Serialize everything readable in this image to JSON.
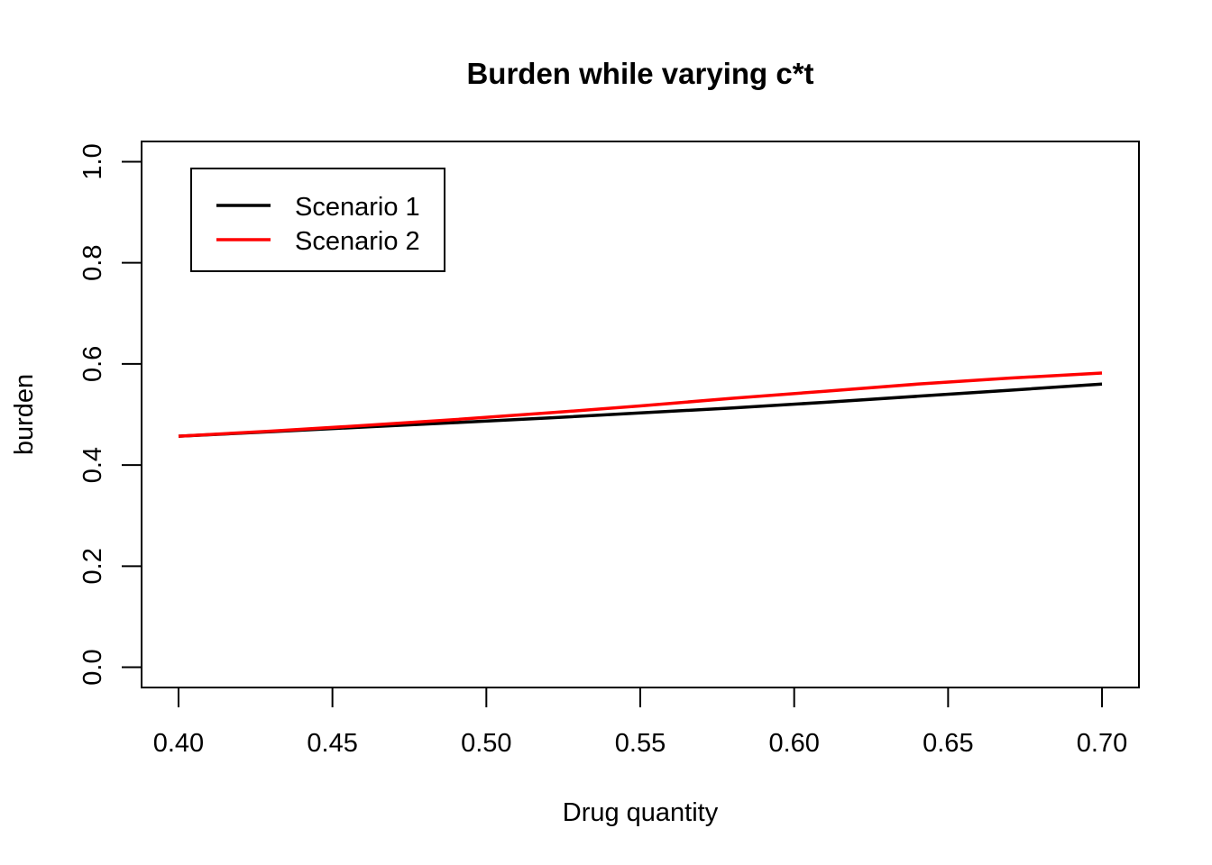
{
  "chart_data": {
    "type": "line",
    "title": "Burden while varying c*t",
    "xlabel": "Drug quantity",
    "ylabel": "burden",
    "xlim": [
      0.388,
      0.712
    ],
    "ylim": [
      -0.04,
      1.04
    ],
    "x_ticks": [
      "0.40",
      "0.45",
      "0.50",
      "0.55",
      "0.60",
      "0.65",
      "0.70"
    ],
    "y_ticks": [
      "0.0",
      "0.2",
      "0.4",
      "0.6",
      "0.8",
      "1.0"
    ],
    "x_tick_values": [
      0.4,
      0.45,
      0.5,
      0.55,
      0.6,
      0.65,
      0.7
    ],
    "y_tick_values": [
      0.0,
      0.2,
      0.4,
      0.6,
      0.8,
      1.0
    ],
    "x": [
      0.4,
      0.43,
      0.46,
      0.49,
      0.52,
      0.55,
      0.58,
      0.61,
      0.64,
      0.67,
      0.7
    ],
    "series": [
      {
        "name": "Scenario 1",
        "color": "#000000",
        "values": [
          0.457,
          0.466,
          0.475,
          0.484,
          0.493,
          0.503,
          0.513,
          0.524,
          0.536,
          0.548,
          0.56
        ]
      },
      {
        "name": "Scenario 2",
        "color": "#ff0000",
        "values": [
          0.457,
          0.467,
          0.478,
          0.49,
          0.503,
          0.517,
          0.532,
          0.546,
          0.56,
          0.572,
          0.582
        ]
      }
    ],
    "grid": false,
    "legend_position": "top-left"
  }
}
